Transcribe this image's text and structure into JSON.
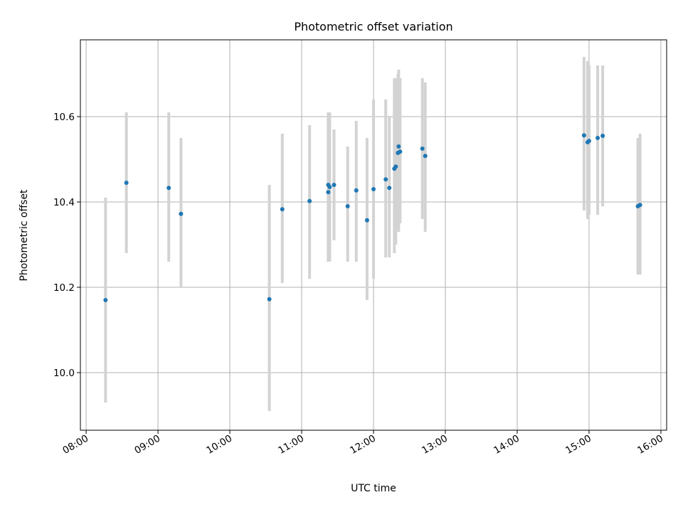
{
  "chart_data": {
    "type": "scatter",
    "title": "Photometric offset variation",
    "xlabel": "UTC time",
    "ylabel": "Photometric offset",
    "x_unit": "hours (UTC)",
    "xlim": [
      7.92,
      16.08
    ],
    "ylim": [
      9.865,
      10.78
    ],
    "x_ticks": [
      8,
      9,
      10,
      11,
      12,
      13,
      14,
      15,
      16
    ],
    "x_tick_labels": [
      "08:00",
      "09:00",
      "10:00",
      "11:00",
      "12:00",
      "13:00",
      "14:00",
      "15:00",
      "16:00"
    ],
    "y_ticks": [
      10.0,
      10.2,
      10.4,
      10.6
    ],
    "y_tick_labels": [
      "10.0",
      "10.2",
      "10.4",
      "10.6"
    ],
    "grid": true,
    "legend": "none",
    "colors": {
      "point": "#1f77b4",
      "errorbar": "#d3d3d3",
      "grid": "#b0b0b0"
    },
    "points": [
      {
        "x": 8.27,
        "y": 10.17,
        "lo": 9.93,
        "hi": 10.41
      },
      {
        "x": 8.56,
        "y": 10.445,
        "lo": 10.28,
        "hi": 10.61
      },
      {
        "x": 9.15,
        "y": 10.433,
        "lo": 10.26,
        "hi": 10.61
      },
      {
        "x": 9.32,
        "y": 10.372,
        "lo": 10.2,
        "hi": 10.55
      },
      {
        "x": 10.55,
        "y": 10.172,
        "lo": 9.91,
        "hi": 10.44
      },
      {
        "x": 10.73,
        "y": 10.383,
        "lo": 10.21,
        "hi": 10.56
      },
      {
        "x": 11.11,
        "y": 10.402,
        "lo": 10.22,
        "hi": 10.58
      },
      {
        "x": 11.37,
        "y": 10.44,
        "lo": 10.26,
        "hi": 10.61
      },
      {
        "x": 11.37,
        "y": 10.423,
        "lo": 10.26,
        "hi": 10.6
      },
      {
        "x": 11.39,
        "y": 10.435,
        "lo": 10.26,
        "hi": 10.61
      },
      {
        "x": 11.45,
        "y": 10.44,
        "lo": 10.31,
        "hi": 10.57
      },
      {
        "x": 11.64,
        "y": 10.39,
        "lo": 10.26,
        "hi": 10.53
      },
      {
        "x": 11.76,
        "y": 10.427,
        "lo": 10.26,
        "hi": 10.59
      },
      {
        "x": 11.91,
        "y": 10.357,
        "lo": 10.17,
        "hi": 10.55
      },
      {
        "x": 12.0,
        "y": 10.43,
        "lo": 10.22,
        "hi": 10.64
      },
      {
        "x": 12.17,
        "y": 10.453,
        "lo": 10.27,
        "hi": 10.64
      },
      {
        "x": 12.22,
        "y": 10.433,
        "lo": 10.27,
        "hi": 10.6
      },
      {
        "x": 12.29,
        "y": 10.478,
        "lo": 10.28,
        "hi": 10.69
      },
      {
        "x": 12.31,
        "y": 10.483,
        "lo": 10.3,
        "hi": 10.69
      },
      {
        "x": 12.34,
        "y": 10.515,
        "lo": 10.34,
        "hi": 10.7
      },
      {
        "x": 12.35,
        "y": 10.53,
        "lo": 10.33,
        "hi": 10.71
      },
      {
        "x": 12.37,
        "y": 10.518,
        "lo": 10.35,
        "hi": 10.69
      },
      {
        "x": 12.68,
        "y": 10.525,
        "lo": 10.36,
        "hi": 10.69
      },
      {
        "x": 12.72,
        "y": 10.508,
        "lo": 10.33,
        "hi": 10.68
      },
      {
        "x": 14.93,
        "y": 10.556,
        "lo": 10.38,
        "hi": 10.74
      },
      {
        "x": 14.98,
        "y": 10.54,
        "lo": 10.36,
        "hi": 10.73
      },
      {
        "x": 15.0,
        "y": 10.543,
        "lo": 10.37,
        "hi": 10.72
      },
      {
        "x": 15.12,
        "y": 10.55,
        "lo": 10.37,
        "hi": 10.72
      },
      {
        "x": 15.19,
        "y": 10.555,
        "lo": 10.39,
        "hi": 10.72
      },
      {
        "x": 15.68,
        "y": 10.39,
        "lo": 10.23,
        "hi": 10.55
      },
      {
        "x": 15.71,
        "y": 10.393,
        "lo": 10.23,
        "hi": 10.56
      }
    ]
  }
}
